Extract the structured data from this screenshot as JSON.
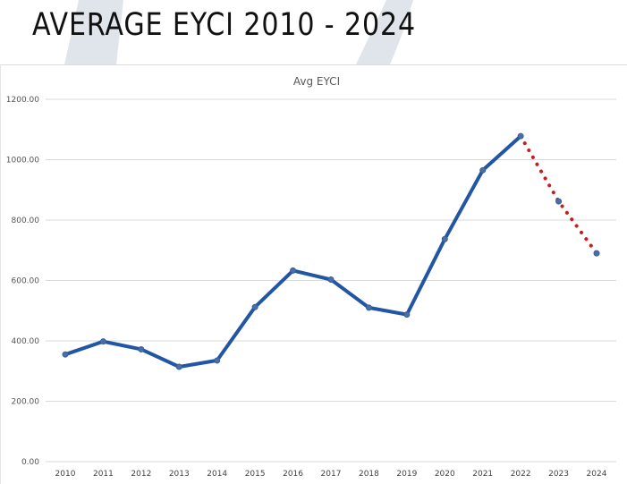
{
  "slide": {
    "title": "AVERAGE EYCI 2010 - 2024"
  },
  "colors": {
    "actual_line": "#2156a5",
    "forecast_line": "#c0201e",
    "gridline": "#d9d9d9",
    "decor_shape": "#c5d0db"
  },
  "chart_data": {
    "type": "line",
    "title": "Avg EYCI",
    "xlabel": "",
    "ylabel": "",
    "categories": [
      "2010",
      "2011",
      "2012",
      "2013",
      "2014",
      "2015",
      "2016",
      "2017",
      "2018",
      "2019",
      "2020",
      "2021",
      "2022",
      "2023",
      "2024"
    ],
    "ylim": [
      0,
      1200
    ],
    "yticks": [
      "0.00",
      "200.00",
      "400.00",
      "600.00",
      "800.00",
      "1000.00",
      "1200.00"
    ],
    "grid": true,
    "legend": "none",
    "series": [
      {
        "style": "solid",
        "values": [
          355,
          398,
          372,
          314,
          335,
          512,
          633,
          603,
          510,
          487,
          737,
          965,
          1078,
          null,
          null
        ]
      },
      {
        "style": "dotted",
        "values": [
          null,
          null,
          null,
          null,
          null,
          null,
          null,
          null,
          null,
          null,
          null,
          null,
          1078,
          862,
          690
        ]
      }
    ]
  }
}
